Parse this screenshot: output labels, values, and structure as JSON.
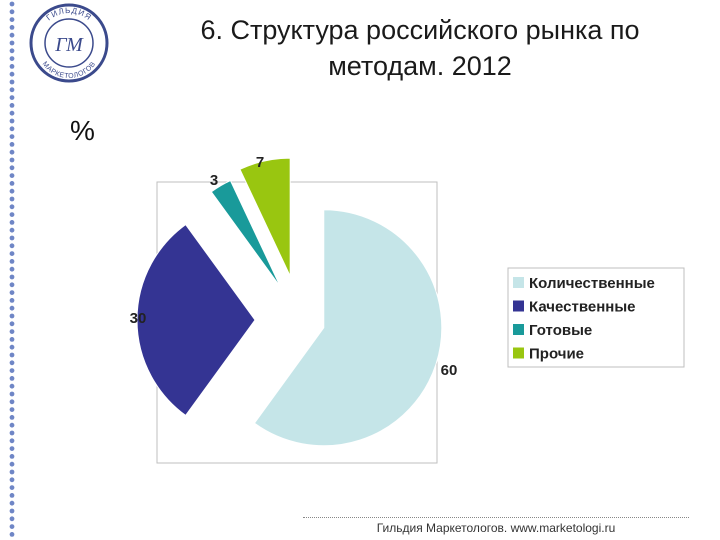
{
  "title": "6. Структура российского рынка по методам. 2012",
  "unit_label": "%",
  "logo": {
    "icon": "guild-of-marketers-logo",
    "text_top": "ГИЛЬДИЯ",
    "text_bottom": "МАРКЕТОЛОГОВ",
    "monogram": "ГМ"
  },
  "footer": "Гильдия Маркетологов. www.marketologi.ru",
  "chart_data": {
    "type": "pie",
    "exploded": true,
    "categories": [
      "Количественные",
      "Качественные",
      "Готовые",
      "Прочие"
    ],
    "values": [
      60,
      30,
      3,
      7
    ],
    "data_labels": [
      "60",
      "30",
      "3",
      "7"
    ],
    "colors": [
      "#c5e5e8",
      "#343493",
      "#199a9a",
      "#99c610"
    ],
    "legend_position": "right",
    "title": ""
  }
}
